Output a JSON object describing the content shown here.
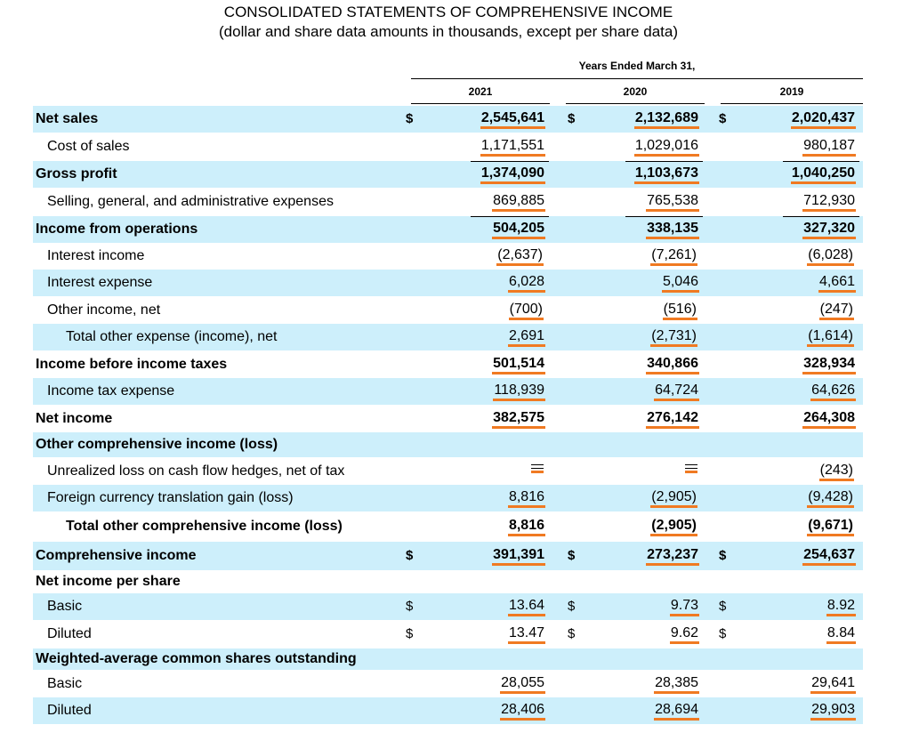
{
  "header": {
    "title": "CONSOLIDATED STATEMENTS OF COMPREHENSIVE INCOME",
    "subtitle": "(dollar and share data amounts in thousands, except per share data)",
    "period_label": "Years Ended March 31,",
    "years": [
      "2021",
      "2020",
      "2019"
    ]
  },
  "colors": {
    "shade": "#cdeffb",
    "underline": "#f07a22"
  },
  "rows": [
    {
      "label": "Net sales",
      "dollar": "$",
      "v2021": "2,545,641",
      "v2020": "2,132,689",
      "v2019": "2,020,437"
    },
    {
      "label": "Cost of sales",
      "v2021": "1,171,551",
      "v2020": "1,029,016",
      "v2019": "980,187"
    },
    {
      "label": "Gross profit",
      "v2021": "1,374,090",
      "v2020": "1,103,673",
      "v2019": "1,040,250"
    },
    {
      "label": "Selling, general, and administrative expenses",
      "v2021": "869,885",
      "v2020": "765,538",
      "v2019": "712,930"
    },
    {
      "label": "Income from operations",
      "v2021": "504,205",
      "v2020": "338,135",
      "v2019": "327,320"
    },
    {
      "label": "Interest income",
      "v2021": "(2,637)",
      "v2020": "(7,261)",
      "v2019": "(6,028)"
    },
    {
      "label": "Interest expense",
      "v2021": "6,028",
      "v2020": "5,046",
      "v2019": "4,661"
    },
    {
      "label": "Other income, net",
      "v2021": "(700)",
      "v2020": "(516)",
      "v2019": "(247)"
    },
    {
      "label": "Total other expense (income), net",
      "v2021": "2,691",
      "v2020": "(2,731)",
      "v2019": "(1,614)"
    },
    {
      "label": "Income before income taxes",
      "v2021": "501,514",
      "v2020": "340,866",
      "v2019": "328,934"
    },
    {
      "label": "Income tax expense",
      "v2021": "118,939",
      "v2020": "64,724",
      "v2019": "64,626"
    },
    {
      "label": "Net income",
      "v2021": "382,575",
      "v2020": "276,142",
      "v2019": "264,308"
    },
    {
      "label": "Other comprehensive income (loss)"
    },
    {
      "label": "Unrealized loss on cash flow hedges, net of tax",
      "v2021": "—",
      "v2020": "—",
      "v2019": "(243)"
    },
    {
      "label": "Foreign currency translation gain (loss)",
      "v2021": "8,816",
      "v2020": "(2,905)",
      "v2019": "(9,428)"
    },
    {
      "label": "Total other comprehensive income (loss)",
      "v2021": "8,816",
      "v2020": "(2,905)",
      "v2019": "(9,671)"
    },
    {
      "label": "Comprehensive income",
      "dollar": "$",
      "v2021": "391,391",
      "v2020": "273,237",
      "v2019": "254,637"
    },
    {
      "label": "Net income per share"
    },
    {
      "label": "Basic",
      "dollar": "$",
      "v2021": "13.64",
      "v2020": "9.73",
      "v2019": "8.92"
    },
    {
      "label": "Diluted",
      "dollar": "$",
      "v2021": "13.47",
      "v2020": "9.62",
      "v2019": "8.84"
    },
    {
      "label": "Weighted-average common shares outstanding"
    },
    {
      "label": "Basic",
      "v2021": "28,055",
      "v2020": "28,385",
      "v2019": "29,641"
    },
    {
      "label": "Diluted",
      "v2021": "28,406",
      "v2020": "28,694",
      "v2019": "29,903"
    }
  ]
}
